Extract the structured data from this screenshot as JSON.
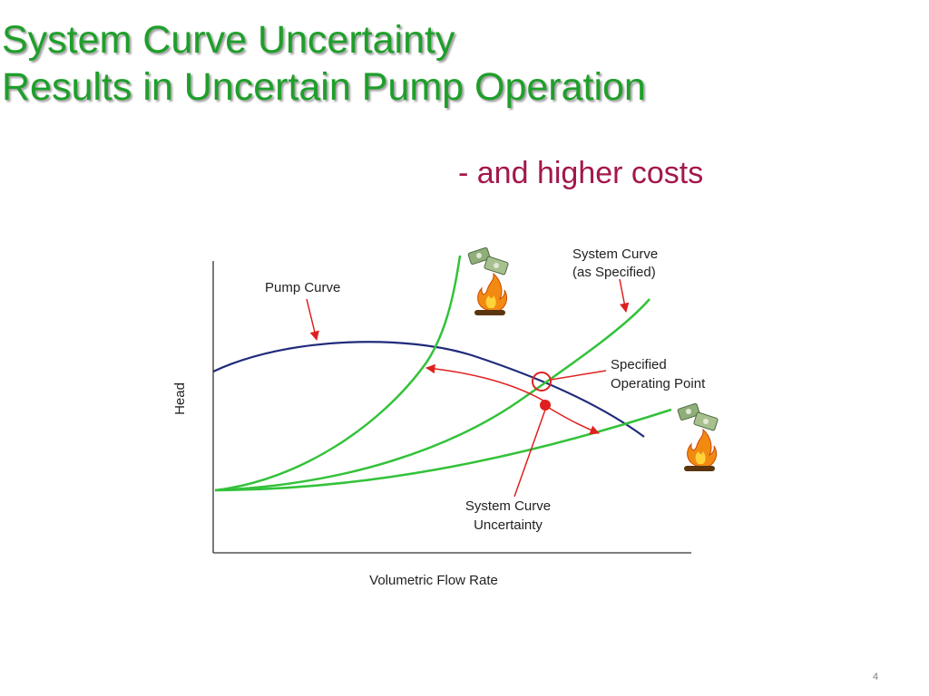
{
  "slide": {
    "title_line1": "System Curve Uncertainty",
    "title_line2": "Results in Uncertain Pump Operation",
    "subtitle": "- and higher costs",
    "page_number": "4"
  },
  "diagram": {
    "axis_y_label": "Head",
    "axis_x_label": "Volumetric Flow Rate",
    "label_pump_curve": "Pump Curve",
    "label_system_spec_line1": "System Curve",
    "label_system_spec_line2": "(as Specified)",
    "label_operating_line1": "Specified",
    "label_operating_line2": "Operating Point",
    "label_uncertainty_line1": "System Curve",
    "label_uncertainty_line2": "Uncertainty",
    "colors": {
      "title": "#1e9f2a",
      "subtitle": "#a3174c",
      "pump_curve": "#1f2a7a",
      "system_curves": "#33c23a",
      "annotation": "#e02020",
      "axis": "#333333"
    },
    "icons": [
      "money-fire-icon",
      "money-fire-icon"
    ]
  }
}
